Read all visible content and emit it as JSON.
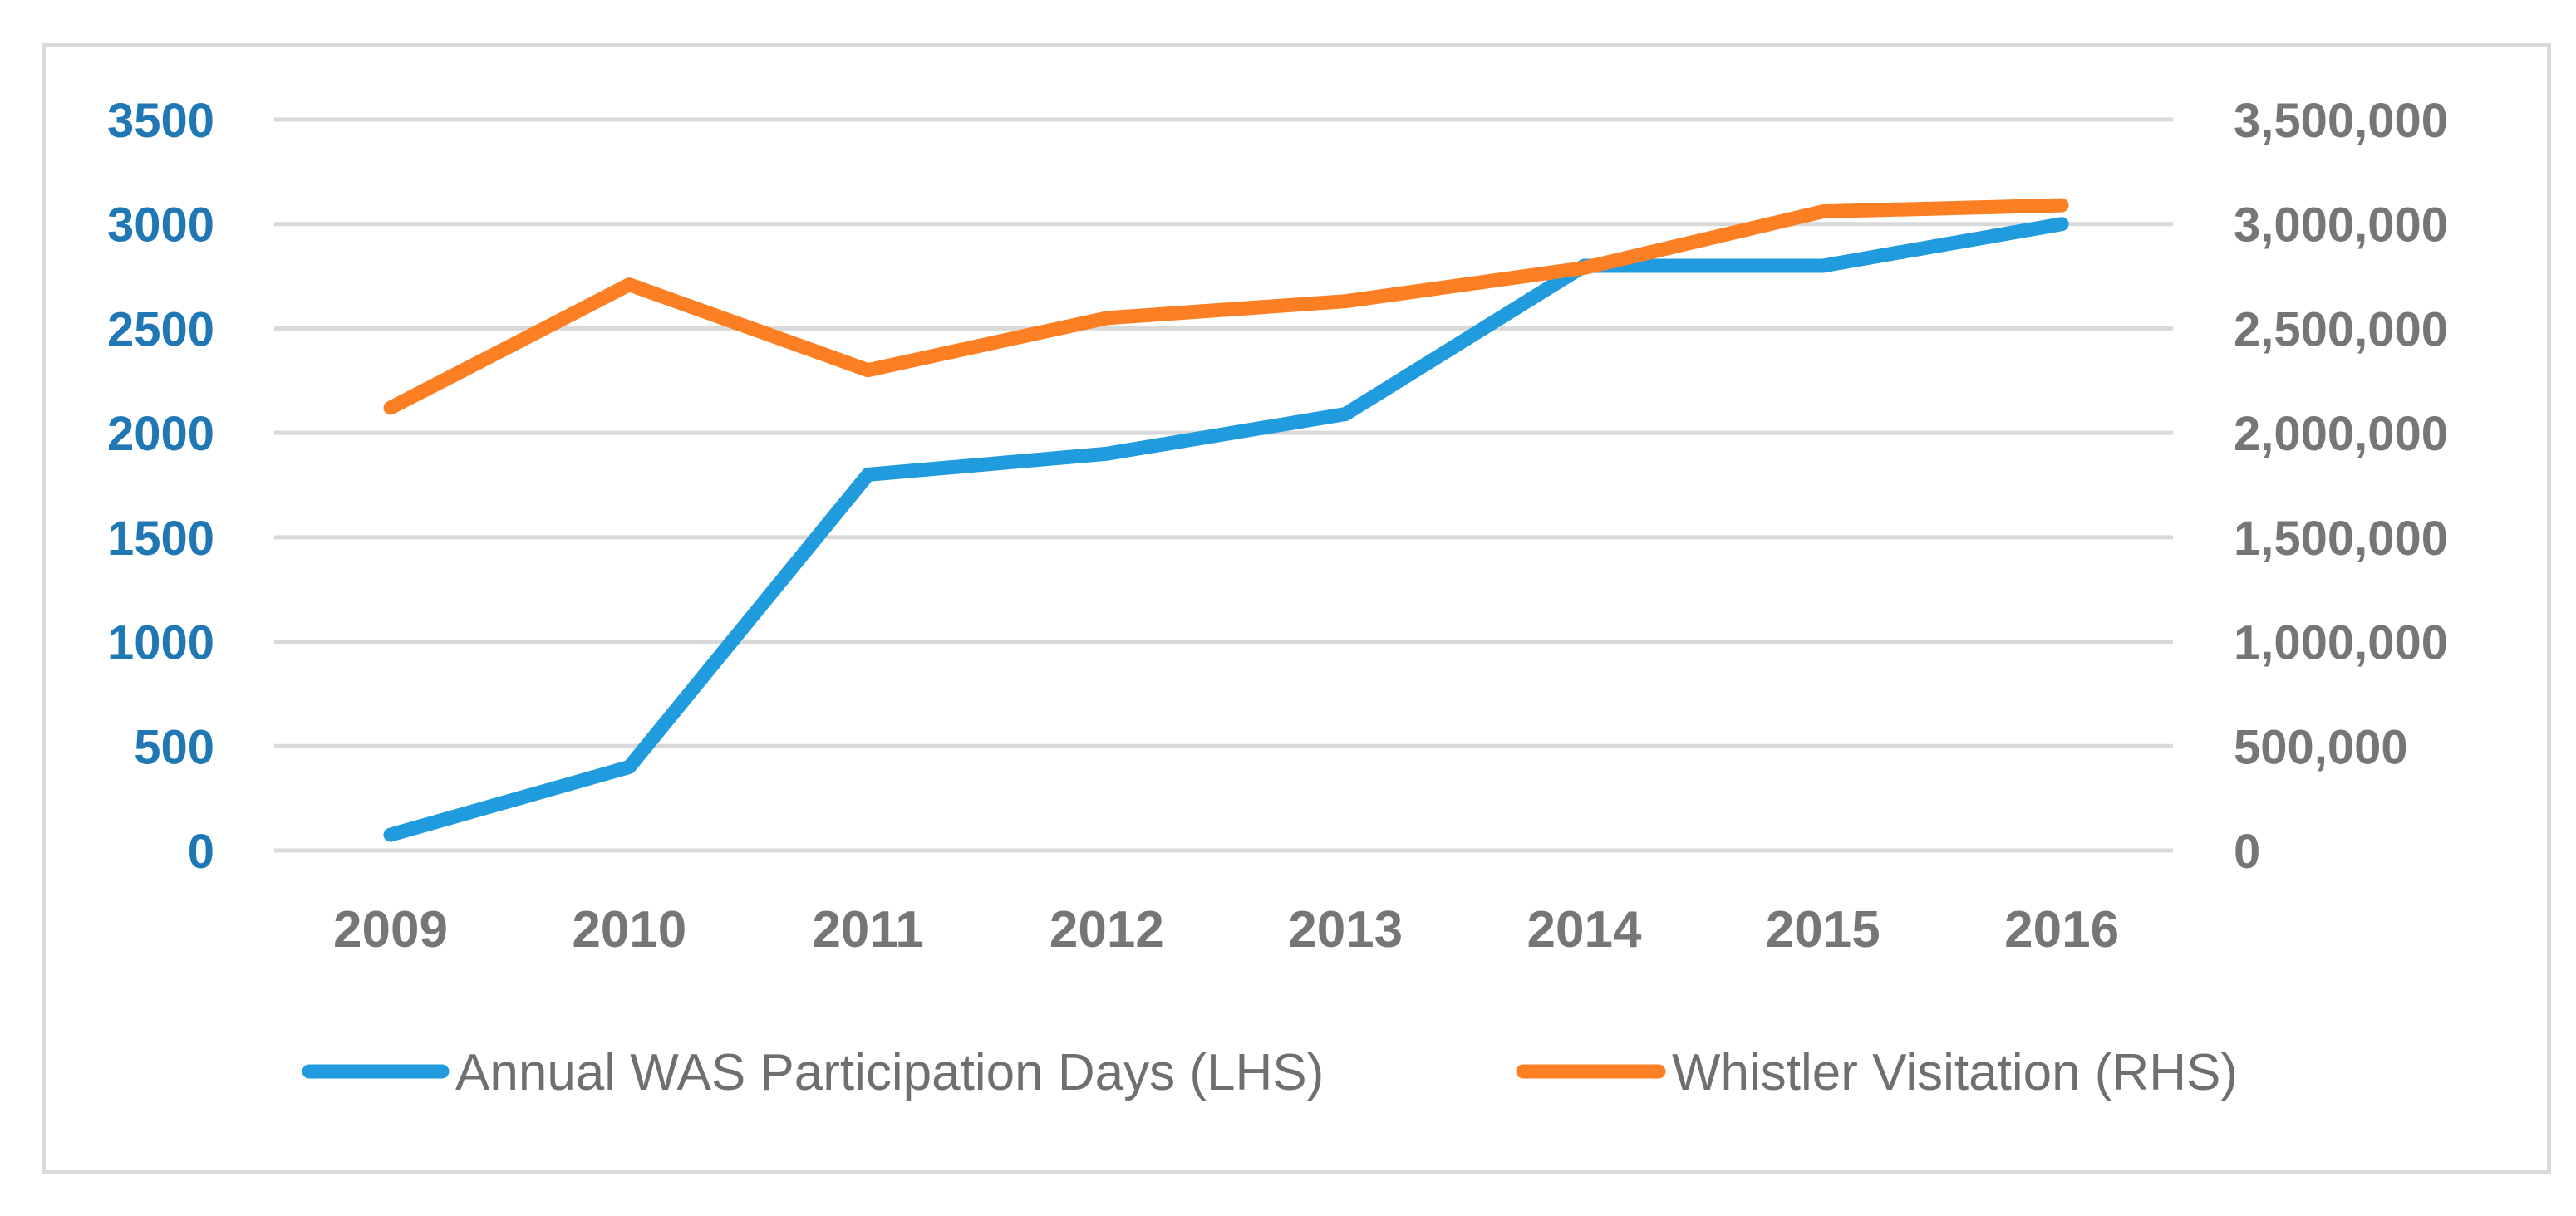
{
  "chart_data": {
    "type": "line",
    "title": "",
    "categories": [
      "2009",
      "2010",
      "2011",
      "2012",
      "2013",
      "2014",
      "2015",
      "2016"
    ],
    "series": [
      {
        "name": "Annual WAS Participation Days (LHS)",
        "axis": "left",
        "color": "#1f9bde",
        "values": [
          75,
          400,
          1800,
          1900,
          2090,
          2800,
          2800,
          3000
        ]
      },
      {
        "name": "Whistler Visitation (RHS)",
        "axis": "right",
        "color": "#fd7f23",
        "values": [
          2120000,
          2710000,
          2300000,
          2550000,
          2630000,
          2790000,
          3060000,
          3090000
        ]
      }
    ],
    "y_left": {
      "ylim": [
        0,
        3500
      ],
      "ticks": [
        0,
        500,
        1000,
        1500,
        2000,
        2500,
        3000,
        3500
      ],
      "tick_labels": [
        "0",
        "500",
        "1000",
        "1500",
        "2000",
        "2500",
        "3000",
        "3500"
      ],
      "color": "#1f77b4"
    },
    "y_right": {
      "ylim": [
        0,
        3500000
      ],
      "ticks": [
        0,
        500000,
        1000000,
        1500000,
        2000000,
        2500000,
        3000000,
        3500000
      ],
      "tick_labels": [
        "0",
        "500,000",
        "1,000,000",
        "1,500,000",
        "2,000,000",
        "2,500,000",
        "3,000,000",
        "3,500,000"
      ],
      "color": "#767676"
    },
    "grid": true,
    "legend": "bottom"
  }
}
